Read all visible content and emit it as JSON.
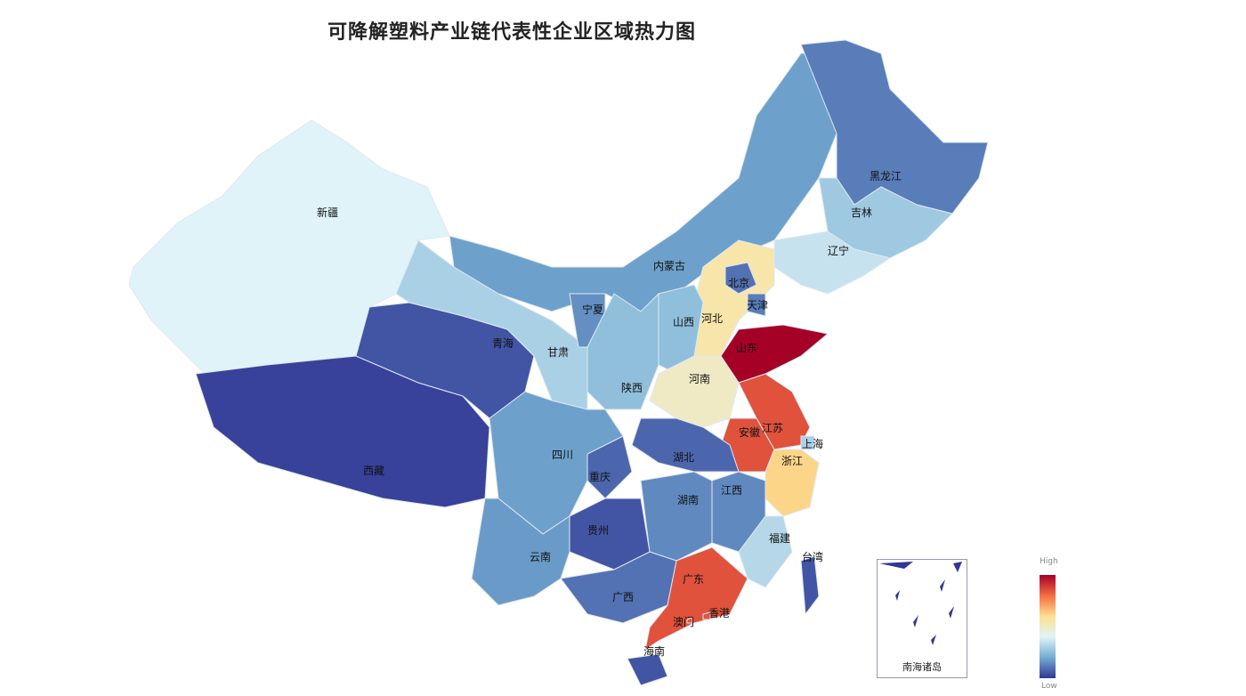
{
  "title": "可降解塑料产业链代表性企业区域热力图",
  "legend": {
    "high_label": "High",
    "low_label": "Low",
    "colors": [
      "#a50026",
      "#f46d43",
      "#fee090",
      "#e0f3f8",
      "#74add1",
      "#313695"
    ]
  },
  "inset_label": "南海诸岛",
  "regions": [
    {
      "name": "新疆",
      "level": 0.4
    },
    {
      "name": "西藏",
      "level": 0.02
    },
    {
      "name": "青海",
      "level": 0.05
    },
    {
      "name": "甘肃",
      "level": 0.3
    },
    {
      "name": "内蒙古",
      "level": 0.18
    },
    {
      "name": "黑龙江",
      "level": 0.12
    },
    {
      "name": "吉林",
      "level": 0.28
    },
    {
      "name": "辽宁",
      "level": 0.35
    },
    {
      "name": "河北",
      "level": 0.55
    },
    {
      "name": "北京",
      "level": 0.1
    },
    {
      "name": "天津",
      "level": 0.12
    },
    {
      "name": "山西",
      "level": 0.25
    },
    {
      "name": "宁夏",
      "level": 0.15
    },
    {
      "name": "陕西",
      "level": 0.25
    },
    {
      "name": "山东",
      "level": 1.0
    },
    {
      "name": "河南",
      "level": 0.5
    },
    {
      "name": "江苏",
      "level": 0.85
    },
    {
      "name": "安徽",
      "level": 0.85
    },
    {
      "name": "上海",
      "level": 0.3
    },
    {
      "name": "浙江",
      "level": 0.62
    },
    {
      "name": "湖北",
      "level": 0.08
    },
    {
      "name": "重庆",
      "level": 0.08
    },
    {
      "name": "四川",
      "level": 0.18
    },
    {
      "name": "贵州",
      "level": 0.05
    },
    {
      "name": "云南",
      "level": 0.17
    },
    {
      "name": "湖南",
      "level": 0.14
    },
    {
      "name": "江西",
      "level": 0.14
    },
    {
      "name": "福建",
      "level": 0.32
    },
    {
      "name": "广西",
      "level": 0.1
    },
    {
      "name": "广东",
      "level": 0.85
    },
    {
      "name": "海南",
      "level": 0.05
    },
    {
      "name": "台湾",
      "level": 0.05
    },
    {
      "name": "香港",
      "level": 0.85
    },
    {
      "name": "澳门",
      "level": 0.85
    }
  ]
}
